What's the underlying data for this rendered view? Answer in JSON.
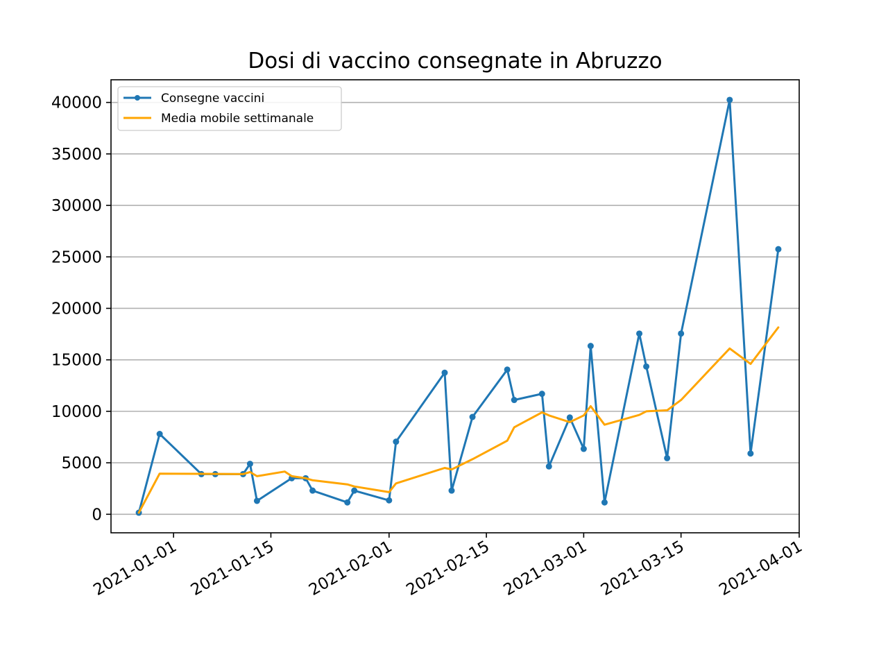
{
  "chart_data": {
    "type": "line",
    "title": "Dosi di vaccino consegnate in Abruzzo",
    "xlabel": "",
    "ylabel": "",
    "x_ticks": [
      "2021-01-01",
      "2021-01-15",
      "2021-02-01",
      "2021-02-15",
      "2021-03-01",
      "2021-03-15",
      "2021-04-01"
    ],
    "y_ticks": [
      0,
      5000,
      10000,
      15000,
      20000,
      25000,
      30000,
      35000,
      40000
    ],
    "y_tick_labels": [
      "0",
      "5000",
      "10000",
      "15000",
      "20000",
      "25000",
      "30000",
      "35000",
      "40000"
    ],
    "xlim": [
      "2020-12-23",
      "2021-04-01"
    ],
    "ylim": [
      -1800,
      42200
    ],
    "grid": "y",
    "legend_position": "top-left",
    "series": [
      {
        "name": "Consegne vaccini",
        "color": "#1f77b4",
        "marker": "dot",
        "points": [
          {
            "x": "2020-12-27",
            "y": 150
          },
          {
            "x": "2020-12-30",
            "y": 7800
          },
          {
            "x": "2021-01-05",
            "y": 3900
          },
          {
            "x": "2021-01-07",
            "y": 3900
          },
          {
            "x": "2021-01-11",
            "y": 3900
          },
          {
            "x": "2021-01-12",
            "y": 4900
          },
          {
            "x": "2021-01-13",
            "y": 1300
          },
          {
            "x": "2021-01-18",
            "y": 3500
          },
          {
            "x": "2021-01-20",
            "y": 3500
          },
          {
            "x": "2021-01-21",
            "y": 2300
          },
          {
            "x": "2021-01-26",
            "y": 1150
          },
          {
            "x": "2021-01-27",
            "y": 2300
          },
          {
            "x": "2021-02-01",
            "y": 1350
          },
          {
            "x": "2021-02-02",
            "y": 7050
          },
          {
            "x": "2021-02-09",
            "y": 13750
          },
          {
            "x": "2021-02-10",
            "y": 2300
          },
          {
            "x": "2021-02-13",
            "y": 9450
          },
          {
            "x": "2021-02-18",
            "y": 14050
          },
          {
            "x": "2021-02-19",
            "y": 11100
          },
          {
            "x": "2021-02-23",
            "y": 11700
          },
          {
            "x": "2021-02-24",
            "y": 4650
          },
          {
            "x": "2021-02-27",
            "y": 9400
          },
          {
            "x": "2021-03-01",
            "y": 6350
          },
          {
            "x": "2021-03-02",
            "y": 16350
          },
          {
            "x": "2021-03-04",
            "y": 1150
          },
          {
            "x": "2021-03-09",
            "y": 17550
          },
          {
            "x": "2021-03-10",
            "y": 14350
          },
          {
            "x": "2021-03-13",
            "y": 5450
          },
          {
            "x": "2021-03-15",
            "y": 17550
          },
          {
            "x": "2021-03-22",
            "y": 40250
          },
          {
            "x": "2021-03-25",
            "y": 5900
          },
          {
            "x": "2021-03-29",
            "y": 25750
          }
        ]
      },
      {
        "name": "Media mobile settimanale",
        "color": "#ffa500",
        "marker": "none",
        "points": [
          {
            "x": "2020-12-27",
            "y": 150
          },
          {
            "x": "2020-12-30",
            "y": 3950
          },
          {
            "x": "2021-01-05",
            "y": 3930
          },
          {
            "x": "2021-01-07",
            "y": 3920
          },
          {
            "x": "2021-01-11",
            "y": 3900
          },
          {
            "x": "2021-01-12",
            "y": 4100
          },
          {
            "x": "2021-01-13",
            "y": 3700
          },
          {
            "x": "2021-01-17",
            "y": 4150
          },
          {
            "x": "2021-01-18",
            "y": 3700
          },
          {
            "x": "2021-01-20",
            "y": 3500
          },
          {
            "x": "2021-01-21",
            "y": 3300
          },
          {
            "x": "2021-01-26",
            "y": 2900
          },
          {
            "x": "2021-01-27",
            "y": 2700
          },
          {
            "x": "2021-02-01",
            "y": 2150
          },
          {
            "x": "2021-02-02",
            "y": 3000
          },
          {
            "x": "2021-02-09",
            "y": 4500
          },
          {
            "x": "2021-02-10",
            "y": 4350
          },
          {
            "x": "2021-02-13",
            "y": 5350
          },
          {
            "x": "2021-02-18",
            "y": 7150
          },
          {
            "x": "2021-02-19",
            "y": 8450
          },
          {
            "x": "2021-02-23",
            "y": 9900
          },
          {
            "x": "2021-02-24",
            "y": 9600
          },
          {
            "x": "2021-02-27",
            "y": 8950
          },
          {
            "x": "2021-03-01",
            "y": 9600
          },
          {
            "x": "2021-03-02",
            "y": 10500
          },
          {
            "x": "2021-03-04",
            "y": 8700
          },
          {
            "x": "2021-03-09",
            "y": 9650
          },
          {
            "x": "2021-03-10",
            "y": 10000
          },
          {
            "x": "2021-03-13",
            "y": 10100
          },
          {
            "x": "2021-03-15",
            "y": 11100
          },
          {
            "x": "2021-03-22",
            "y": 16100
          },
          {
            "x": "2021-03-25",
            "y": 14600
          },
          {
            "x": "2021-03-29",
            "y": 18150
          }
        ]
      }
    ]
  }
}
